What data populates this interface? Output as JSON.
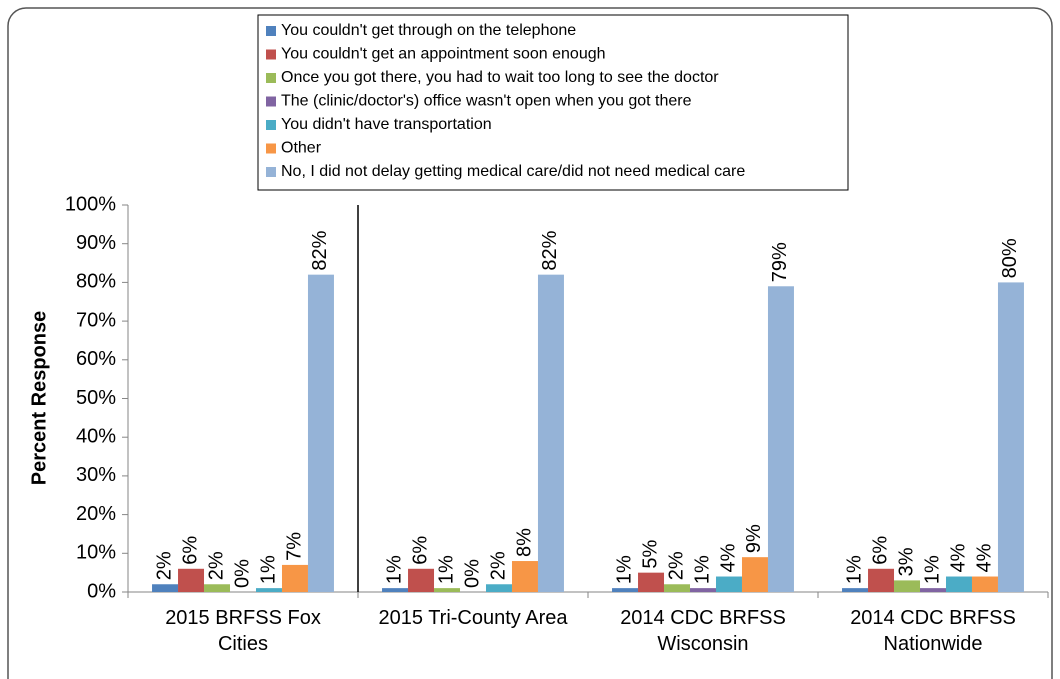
{
  "chart_data": {
    "type": "bar",
    "ylabel": "Percent Response",
    "categories": [
      "2015 BRFSS Fox Cities",
      "2015 Tri-County Area",
      "2014 CDC BRFSS Wisconsin",
      "2014 CDC BRFSS Nationwide"
    ],
    "series": [
      {
        "name": "You couldn't get through on the telephone",
        "color": "#4f81bd",
        "values": [
          2,
          1,
          1,
          1
        ],
        "value_labels": [
          "2%",
          "1%",
          "1%",
          "1%"
        ]
      },
      {
        "name": "You couldn't get an appointment soon enough",
        "color": "#c0504d",
        "values": [
          6,
          6,
          5,
          6
        ],
        "value_labels": [
          "6%",
          "6%",
          "5%",
          "6%"
        ]
      },
      {
        "name": "Once you got there, you had to wait too long to see the doctor",
        "color": "#9bbb59",
        "values": [
          2,
          1,
          2,
          3
        ],
        "value_labels": [
          "2%",
          "1%",
          "2%",
          "3%"
        ]
      },
      {
        "name": "The (clinic/doctor's) office wasn't open when you got there",
        "color": "#8064a2",
        "values": [
          0,
          0,
          1,
          1
        ],
        "value_labels": [
          "0%",
          "0%",
          "1%",
          "1%"
        ]
      },
      {
        "name": "You didn't have transportation",
        "color": "#4bacc6",
        "values": [
          1,
          2,
          4,
          4
        ],
        "value_labels": [
          "1%",
          "2%",
          "4%",
          "4%"
        ]
      },
      {
        "name": "Other",
        "color": "#f79646",
        "values": [
          7,
          8,
          9,
          4
        ],
        "value_labels": [
          "7%",
          "8%",
          "9%",
          "4%"
        ]
      },
      {
        "name": "No, I did not delay getting medical care/did not need medical care",
        "color": "#95b3d7",
        "values": [
          82,
          82,
          79,
          80
        ],
        "value_labels": [
          "82%",
          "82%",
          "79%",
          "80%"
        ]
      }
    ],
    "ylim": [
      0,
      100
    ],
    "yticks": [
      {
        "value": 0,
        "label": "0%"
      },
      {
        "value": 10,
        "label": "10%"
      },
      {
        "value": 20,
        "label": "20%"
      },
      {
        "value": 30,
        "label": "30%"
      },
      {
        "value": 40,
        "label": "40%"
      },
      {
        "value": 50,
        "label": "50%"
      },
      {
        "value": 60,
        "label": "60%"
      },
      {
        "value": 70,
        "label": "70%"
      },
      {
        "value": 80,
        "label": "80%"
      },
      {
        "value": 90,
        "label": "90%"
      },
      {
        "value": 100,
        "label": "100%"
      }
    ],
    "grid": false,
    "legend": "top"
  }
}
